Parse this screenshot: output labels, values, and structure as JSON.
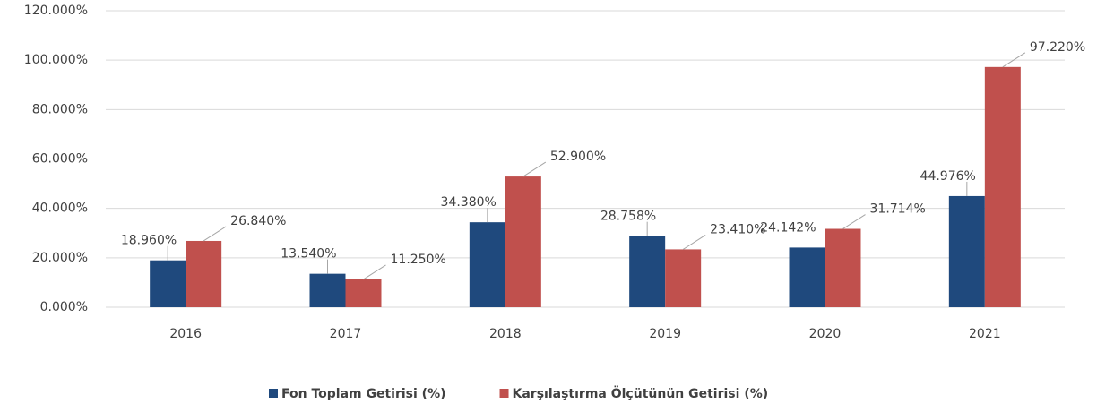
{
  "chart_data": {
    "type": "bar",
    "categories": [
      "2016",
      "2017",
      "2018",
      "2019",
      "2020",
      "2021"
    ],
    "series": [
      {
        "name": "Fon Toplam Getirisi (%)",
        "color": "#1f497d",
        "values": [
          18.96,
          13.54,
          34.38,
          28.758,
          24.142,
          44.976
        ],
        "value_labels": [
          "18.960%",
          "13.540%",
          "34.380%",
          "28.758%",
          "24.142%",
          "44.976%"
        ]
      },
      {
        "name": "Karşılaştırma Ölçütünün Getirisi (%)",
        "color": "#c0504d",
        "values": [
          26.84,
          11.25,
          52.9,
          23.41,
          31.714,
          97.22
        ],
        "value_labels": [
          "26.840%",
          "11.250%",
          "52.900%",
          "23.410%",
          "31.714%",
          "97.220%"
        ]
      }
    ],
    "ylim": [
      0,
      120
    ],
    "yticks": [
      {
        "value": 0,
        "label": "0.000%"
      },
      {
        "value": 20,
        "label": "20.000%"
      },
      {
        "value": 40,
        "label": "40.000%"
      },
      {
        "value": 60,
        "label": "60.000%"
      },
      {
        "value": 80,
        "label": "80.000%"
      },
      {
        "value": 100,
        "label": "100.000%"
      },
      {
        "value": 120,
        "label": "120.000%"
      }
    ],
    "grid": true,
    "legend": "bottom"
  }
}
